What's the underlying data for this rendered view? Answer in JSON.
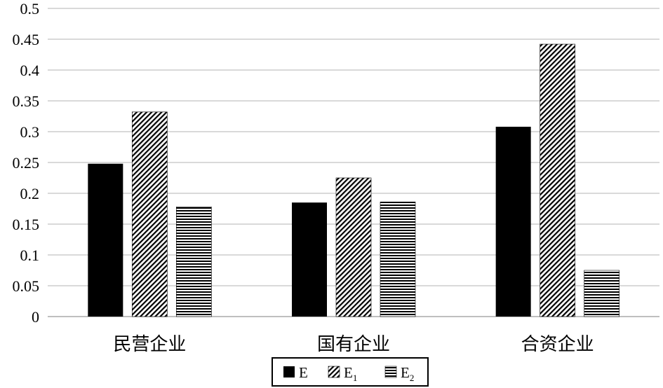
{
  "chart_data": {
    "type": "bar",
    "categories": [
      "民营企业",
      "国有企业",
      "合资企业"
    ],
    "series": [
      {
        "name": "E",
        "values": [
          0.248,
          0.185,
          0.308
        ],
        "fill": "solid"
      },
      {
        "name": "E1",
        "values": [
          0.332,
          0.225,
          0.442
        ],
        "fill": "diagonal-hatch"
      },
      {
        "name": "E2",
        "values": [
          0.178,
          0.186,
          0.075
        ],
        "fill": "horizontal-lines"
      }
    ],
    "legend": [
      {
        "base": "E",
        "sub": ""
      },
      {
        "base": "E",
        "sub": "1"
      },
      {
        "base": "E",
        "sub": "2"
      }
    ],
    "yticks": [
      "0",
      "0.05",
      "0.1",
      "0.15",
      "0.2",
      "0.25",
      "0.3",
      "0.35",
      "0.4",
      "0.45",
      "0.5"
    ],
    "ylim": [
      0,
      0.5
    ],
    "grid": true,
    "legend_position": "bottom",
    "colors": {
      "bar": "#000000",
      "grid": "#d9d9d9",
      "axis": "#bfbfbf"
    }
  }
}
